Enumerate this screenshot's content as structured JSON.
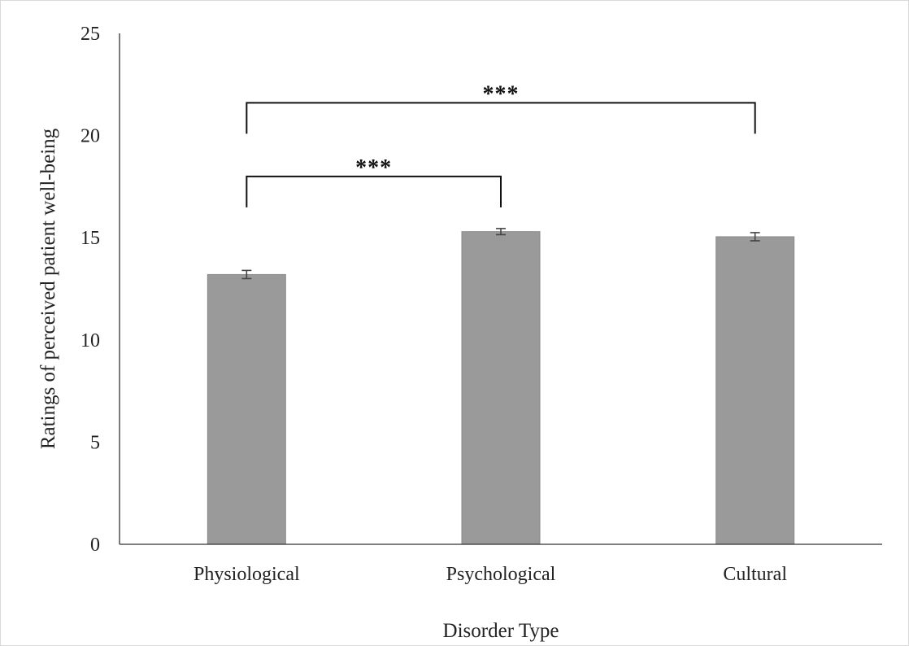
{
  "chart_data": {
    "type": "bar",
    "categories": [
      "Physiological",
      "Psychological",
      "Cultural"
    ],
    "values": [
      13.2,
      15.3,
      15.05
    ],
    "errors": [
      0.2,
      0.15,
      0.2
    ],
    "xlabel": "Disorder Type",
    "ylabel": "Ratings of perceived patient well-being",
    "ylim": [
      0,
      25
    ],
    "yticks": [
      0,
      5,
      10,
      15,
      20,
      25
    ],
    "grid": false,
    "colors": {
      "bar": "#9a9a9a",
      "bar_edge": "#8a8a8a",
      "axis": "#333333",
      "error_bar": "#444444",
      "bracket": "#111111"
    },
    "annotations": [
      {
        "type": "significance",
        "from": "Physiological",
        "to": "Psychological",
        "label": "***",
        "y": 18
      },
      {
        "type": "significance",
        "from": "Physiological",
        "to": "Cultural",
        "label": "***",
        "y": 21.6
      }
    ]
  }
}
